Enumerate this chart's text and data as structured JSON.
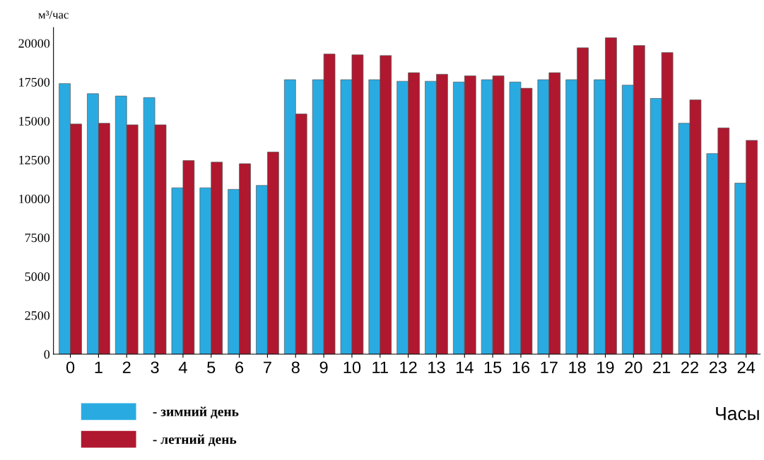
{
  "chart_data": {
    "type": "bar",
    "ylabel": "м³/час",
    "xlabel": "Часы",
    "categories": [
      "0",
      "1",
      "2",
      "3",
      "4",
      "5",
      "6",
      "7",
      "8",
      "9",
      "10",
      "11",
      "12",
      "13",
      "14",
      "15",
      "16",
      "17",
      "18",
      "19",
      "20",
      "21",
      "22",
      "23",
      "24"
    ],
    "series": [
      {
        "name": "- зимний день",
        "color": "#29abe2",
        "values": [
          17400,
          16750,
          16600,
          16500,
          10700,
          10700,
          10600,
          10850,
          17650,
          17650,
          17650,
          17650,
          17550,
          17550,
          17500,
          17650,
          17500,
          17650,
          17650,
          17650,
          17300,
          16450,
          14850,
          12900,
          11000
        ]
      },
      {
        "name": "- летний день",
        "color": "#b0182f",
        "values": [
          14800,
          14850,
          14750,
          14750,
          12450,
          12350,
          12250,
          13000,
          15450,
          19300,
          19250,
          19200,
          18100,
          18000,
          17900,
          17900,
          17100,
          18100,
          19700,
          20350,
          19850,
          19400,
          16350,
          14550,
          13750
        ]
      }
    ],
    "ylim": [
      0,
      21000
    ],
    "yticks": [
      0,
      2500,
      5000,
      7500,
      10000,
      12500,
      15000,
      17500,
      20000
    ],
    "grid": false,
    "legend": "bottom left"
  }
}
